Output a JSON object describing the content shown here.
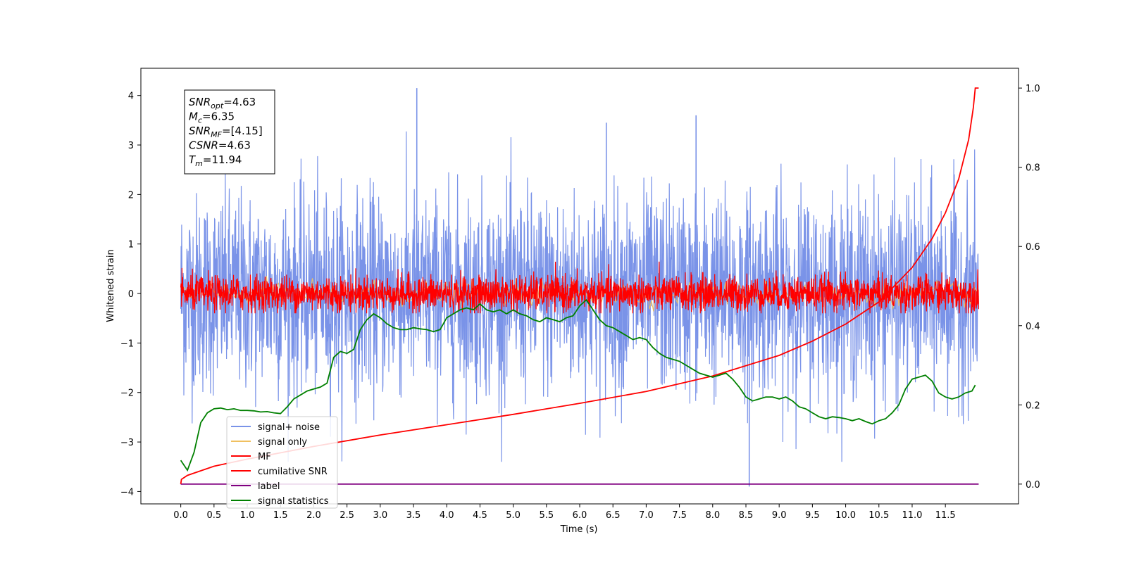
{
  "chart_data": {
    "type": "line",
    "xlabel": "Time (s)",
    "ylabel": "Whitened strain",
    "xlim": [
      -0.6,
      12.6
    ],
    "ylim": [
      -4.25,
      4.55
    ],
    "y2lim": [
      -0.05,
      1.05
    ],
    "x_ticks": [
      "0.0",
      "0.5",
      "1.0",
      "1.5",
      "2.0",
      "2.5",
      "3.0",
      "3.5",
      "4.0",
      "4.5",
      "5.0",
      "5.5",
      "6.0",
      "6.5",
      "7.0",
      "7.5",
      "8.0",
      "8.5",
      "9.0",
      "9.5",
      "10.0",
      "10.5",
      "11.0",
      "11.5"
    ],
    "y_ticks": [
      "−4",
      "−3",
      "−2",
      "−1",
      "0",
      "1",
      "2",
      "3",
      "4"
    ],
    "y2_ticks": [
      "0.0",
      "0.2",
      "0.4",
      "0.6",
      "0.8",
      "1.0"
    ],
    "info_box": [
      {
        "base": "SNR",
        "sub": "opt",
        "value": "=4.63"
      },
      {
        "base": "M",
        "sub": "c",
        "value": "=6.35"
      },
      {
        "base": "SNR",
        "sub": "MF",
        "value": "=[4.15]"
      },
      {
        "base": "CSNR",
        "sub": "",
        "value": "=4.63"
      },
      {
        "base": "T",
        "sub": "m",
        "value": "=11.94"
      }
    ],
    "legend_position": "lower-left",
    "grid": false,
    "series": [
      {
        "name": "signal+ noise",
        "color": "#7a93e8",
        "axis": "left",
        "x_range": [
          0,
          12
        ],
        "band": [
          -3.9,
          4.15
        ],
        "typical_band": [
          -1.8,
          2.4
        ]
      },
      {
        "name": "signal only",
        "color": "#f0c060",
        "axis": "left",
        "x_range": [
          0,
          12
        ],
        "band": [
          -0.4,
          0.4
        ]
      },
      {
        "name": "MF",
        "color": "#ff0000",
        "axis": "left",
        "x_range": [
          0,
          12
        ],
        "band": [
          -0.45,
          0.85
        ],
        "typical_band": [
          -0.35,
          0.4
        ]
      },
      {
        "name": "cumilative SNR",
        "color": "#ff0000",
        "axis": "right",
        "x": [
          0.0,
          0.01,
          0.1,
          0.5,
          1.0,
          2.0,
          3.0,
          4.0,
          5.0,
          6.0,
          7.0,
          8.0,
          9.0,
          9.5,
          10.0,
          10.5,
          11.0,
          11.3,
          11.5,
          11.7,
          11.85,
          11.92,
          11.95,
          12.0
        ],
        "y": [
          0.0,
          0.012,
          0.022,
          0.045,
          0.063,
          0.095,
          0.124,
          0.15,
          0.176,
          0.204,
          0.234,
          0.273,
          0.325,
          0.361,
          0.404,
          0.46,
          0.547,
          0.62,
          0.685,
          0.77,
          0.87,
          0.95,
          1.0,
          1.0
        ]
      },
      {
        "name": "label",
        "color": "#800080",
        "axis": "right",
        "x": [
          0,
          12
        ],
        "y": [
          0,
          0
        ]
      },
      {
        "name": "signal statistics",
        "color": "#008000",
        "axis": "right",
        "x": [
          0.0,
          0.1,
          0.2,
          0.3,
          0.4,
          0.5,
          0.6,
          0.7,
          0.8,
          0.9,
          1.0,
          1.1,
          1.2,
          1.3,
          1.4,
          1.5,
          1.6,
          1.7,
          1.8,
          1.9,
          2.0,
          2.1,
          2.2,
          2.3,
          2.4,
          2.5,
          2.6,
          2.7,
          2.8,
          2.9,
          3.0,
          3.1,
          3.2,
          3.3,
          3.4,
          3.5,
          3.6,
          3.7,
          3.8,
          3.9,
          4.0,
          4.1,
          4.2,
          4.3,
          4.4,
          4.5,
          4.6,
          4.7,
          4.8,
          4.9,
          5.0,
          5.1,
          5.2,
          5.3,
          5.4,
          5.5,
          5.6,
          5.7,
          5.8,
          5.9,
          6.0,
          6.1,
          6.2,
          6.3,
          6.4,
          6.5,
          6.6,
          6.7,
          6.8,
          6.9,
          7.0,
          7.1,
          7.2,
          7.3,
          7.4,
          7.5,
          7.6,
          7.7,
          7.8,
          7.9,
          8.0,
          8.1,
          8.2,
          8.3,
          8.4,
          8.5,
          8.6,
          8.7,
          8.8,
          8.9,
          9.0,
          9.1,
          9.2,
          9.3,
          9.4,
          9.5,
          9.6,
          9.7,
          9.8,
          9.9,
          10.0,
          10.1,
          10.2,
          10.3,
          10.4,
          10.5,
          10.6,
          10.7,
          10.8,
          10.9,
          11.0,
          11.1,
          11.2,
          11.3,
          11.4,
          11.5,
          11.6,
          11.7,
          11.8,
          11.9,
          11.95
        ],
        "y": [
          0.06,
          0.035,
          0.08,
          0.155,
          0.18,
          0.19,
          0.192,
          0.188,
          0.19,
          0.186,
          0.186,
          0.185,
          0.182,
          0.183,
          0.18,
          0.178,
          0.195,
          0.215,
          0.225,
          0.235,
          0.24,
          0.245,
          0.255,
          0.32,
          0.335,
          0.33,
          0.34,
          0.39,
          0.415,
          0.43,
          0.42,
          0.405,
          0.395,
          0.39,
          0.39,
          0.395,
          0.392,
          0.39,
          0.385,
          0.39,
          0.42,
          0.43,
          0.44,
          0.445,
          0.44,
          0.455,
          0.44,
          0.435,
          0.44,
          0.43,
          0.44,
          0.43,
          0.425,
          0.415,
          0.41,
          0.42,
          0.415,
          0.41,
          0.42,
          0.425,
          0.45,
          0.465,
          0.44,
          0.415,
          0.4,
          0.395,
          0.385,
          0.375,
          0.365,
          0.37,
          0.365,
          0.345,
          0.33,
          0.32,
          0.315,
          0.31,
          0.3,
          0.29,
          0.28,
          0.275,
          0.27,
          0.275,
          0.28,
          0.265,
          0.245,
          0.22,
          0.21,
          0.215,
          0.22,
          0.22,
          0.215,
          0.22,
          0.21,
          0.195,
          0.19,
          0.18,
          0.17,
          0.165,
          0.17,
          0.168,
          0.165,
          0.16,
          0.165,
          0.158,
          0.152,
          0.16,
          0.165,
          0.18,
          0.2,
          0.24,
          0.265,
          0.27,
          0.275,
          0.26,
          0.23,
          0.22,
          0.215,
          0.22,
          0.23,
          0.235,
          0.25
        ]
      }
    ]
  }
}
